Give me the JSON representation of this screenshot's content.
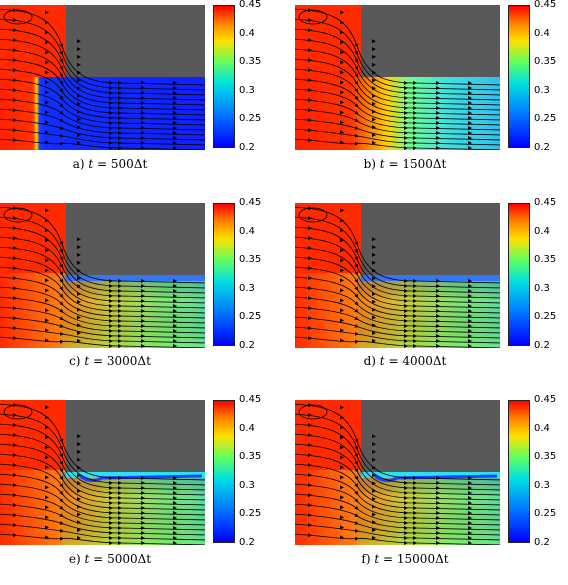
{
  "colorbar_ticks": [
    "0.45",
    "0.4",
    "0.35",
    "0.3",
    "0.25",
    "0.2"
  ],
  "colors": {
    "solid_block": "#595959",
    "hot": "#ff2200",
    "streamline": "#000000"
  },
  "panels": [
    {
      "letter": "a)",
      "t_var": "t",
      "eq": "=",
      "value": "500",
      "unit": "Δt",
      "front": 0.18
    },
    {
      "letter": "b)",
      "t_var": "t",
      "eq": "=",
      "value": "1500",
      "unit": "Δt",
      "front": 0.45
    },
    {
      "letter": "c)",
      "t_var": "t",
      "eq": "=",
      "value": "3000",
      "unit": "Δt",
      "front": 1.0
    },
    {
      "letter": "d)",
      "t_var": "t",
      "eq": "=",
      "value": "4000",
      "unit": "Δt",
      "front": 1.0
    },
    {
      "letter": "e)",
      "t_var": "t",
      "eq": "=",
      "value": "5000",
      "unit": "Δt",
      "front": 1.0
    },
    {
      "letter": "f)",
      "t_var": "t",
      "eq": "=",
      "value": "15000",
      "unit": "Δt",
      "front": 1.0
    }
  ]
}
